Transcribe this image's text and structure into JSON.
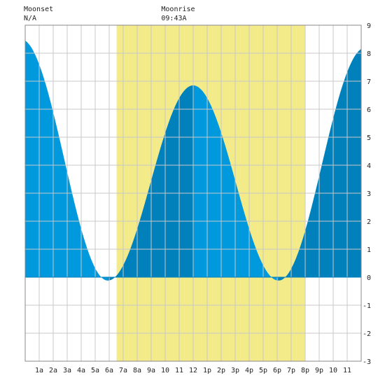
{
  "header": {
    "moonset_label": "Moonset",
    "moonset_value": "N/A",
    "moonrise_label": "Moonrise",
    "moonrise_value": "09:43A"
  },
  "colors": {
    "daylight": "#f3ea89",
    "tide_light": "#0099dd",
    "tide_dark": "#0081bc",
    "grid": "#c8c8c8",
    "frame": "#888888"
  },
  "chart_data": {
    "type": "area",
    "title": "",
    "xlabel": "",
    "ylabel": "",
    "xlim": [
      0,
      24
    ],
    "ylim": [
      -3,
      9
    ],
    "grid": true,
    "x_tick_labels": [
      "1a",
      "2a",
      "3a",
      "4a",
      "5a",
      "6a",
      "7a",
      "8a",
      "9a",
      "10",
      "11",
      "12",
      "1p",
      "2p",
      "3p",
      "4p",
      "5p",
      "6p",
      "7p",
      "8p",
      "9p",
      "10",
      "11"
    ],
    "y_tick_labels": [
      "-3",
      "-2",
      "-1",
      "0",
      "1",
      "2",
      "3",
      "4",
      "5",
      "6",
      "7",
      "8",
      "9"
    ],
    "daylight_hours": [
      6.53,
      19.97
    ],
    "moonrise_hour": 9.72,
    "extrema": [
      {
        "hour": -0.3,
        "height": 8.5
      },
      {
        "hour": 5.9,
        "height": -0.12
      },
      {
        "hour": 12.0,
        "height": 6.85
      },
      {
        "hour": 18.1,
        "height": -0.12
      },
      {
        "hour": 24.3,
        "height": 8.2
      }
    ]
  }
}
